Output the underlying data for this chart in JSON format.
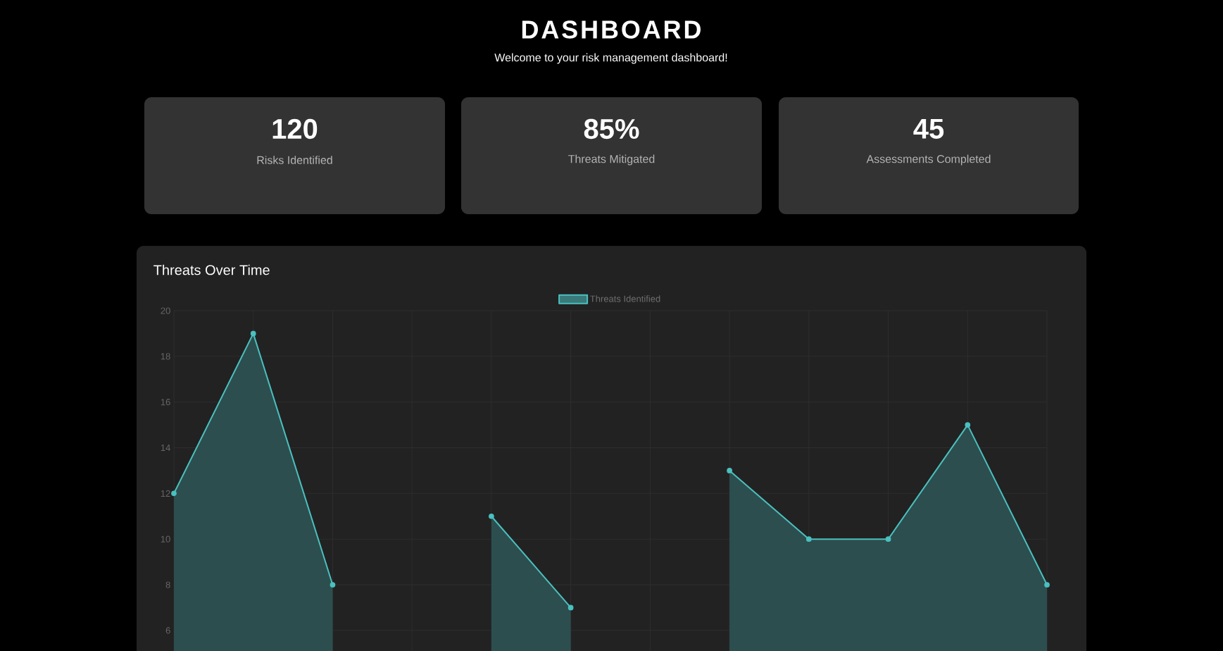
{
  "chart_data": [
    {
      "type": "other",
      "title": "DASHBOARD",
      "subtitle": "Welcome to your risk management dashboard!"
    },
    {
      "type": "other",
      "title": "120",
      "subtitle": "Risks Identified"
    },
    {
      "type": "other",
      "title": "85%",
      "subtitle": "Threats Mitigated"
    },
    {
      "type": "other",
      "title": "45",
      "subtitle": "Assessments Completed"
    },
    {
      "type": "area",
      "title": "Threats Over Time",
      "categories": [
        null,
        null,
        null,
        null,
        null,
        null,
        null,
        null,
        null,
        null,
        null,
        null
      ],
      "series": [
        {
          "name": "Threats Identified",
          "color": "#4bc0c0",
          "values": [
            12,
            19,
            8,
            null,
            11,
            7,
            null,
            13,
            10,
            10,
            15,
            8
          ]
        }
      ],
      "ylim": [
        5.1,
        20
      ],
      "yticks": [
        6,
        8,
        10,
        12,
        14,
        16,
        18,
        20
      ],
      "grid": true,
      "legend": "top",
      "marker": "circle",
      "tick_labels": "y"
    }
  ]
}
